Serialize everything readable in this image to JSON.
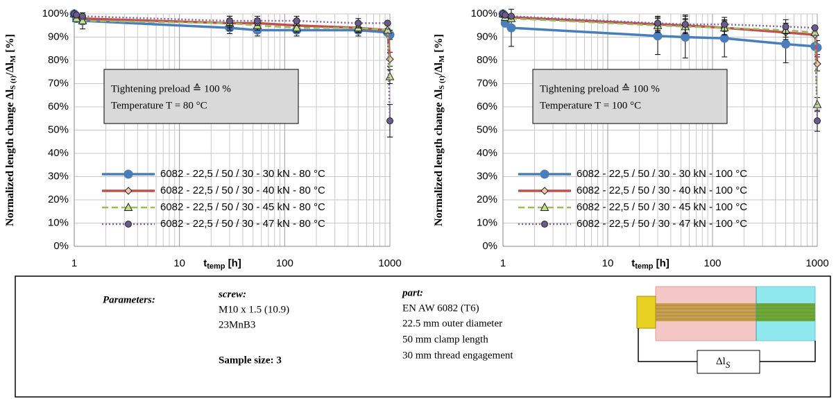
{
  "chart_data": [
    {
      "type": "line",
      "ylabel": [
        "Normalized length change Δl",
        "S (t)",
        "/Δl",
        "M",
        " [%]"
      ],
      "xlabel": [
        "t",
        "temp",
        " [h]"
      ],
      "annotation": [
        "Tightening preload ≙ 100 %",
        "Temperature T = 80 °C"
      ],
      "x": [
        1,
        1.05,
        1.2,
        30,
        55,
        130,
        500,
        950,
        1000
      ],
      "xlim": [
        1,
        1000
      ],
      "xticks": [
        1,
        10,
        100,
        1000
      ],
      "xscale": "log",
      "xminor": [
        2,
        3,
        4,
        5,
        6,
        7,
        8,
        9,
        20,
        30,
        40,
        50,
        60,
        70,
        80,
        90,
        200,
        300,
        400,
        500,
        600,
        700,
        800,
        900
      ],
      "ylim": [
        0,
        100
      ],
      "yticks": [
        {
          "value": 0,
          "label": "0%"
        },
        {
          "value": 10,
          "label": "10%"
        },
        {
          "value": 20,
          "label": "20%"
        },
        {
          "value": 30,
          "label": "30%"
        },
        {
          "value": 40,
          "label": "40%"
        },
        {
          "value": 50,
          "label": "50%"
        },
        {
          "value": 60,
          "label": "60%"
        },
        {
          "value": 70,
          "label": "70%"
        },
        {
          "value": 80,
          "label": "80%"
        },
        {
          "value": 90,
          "label": "90%"
        },
        {
          "value": 100,
          "label": "100%"
        }
      ],
      "grid": true,
      "legend": "lower right",
      "series": [
        {
          "name": "6082 - 22,5 / 50 / 30 - 30 kN - 80 °C",
          "color": "#4a7ebb",
          "marker_fill": "#4a7ebb",
          "line_style": "solid",
          "marker": "circle",
          "values": [
            100,
            98,
            97,
            94,
            93,
            93,
            93,
            92,
            91
          ],
          "errors": [
            null,
            null,
            3.5,
            2.5,
            2.5,
            2.5,
            2.5,
            null,
            2
          ]
        },
        {
          "name": "6082 - 22,5 / 50 / 30 - 40 kN - 80 °C",
          "color": "#c0504d",
          "marker_fill": "#f6c9a9",
          "line_style": "solid",
          "marker": "diamond",
          "values": [
            100,
            99,
            98,
            96,
            96,
            95,
            94,
            93,
            80.5
          ],
          "errors": [
            null,
            null,
            null,
            3,
            2,
            2,
            2,
            null,
            3
          ]
        },
        {
          "name": "6082 - 22,5 / 50 / 30 - 45 kN - 80 °C",
          "color": "#9bbb59",
          "marker_fill": "#c4dd8e",
          "line_style": "dashed",
          "marker": "triangle",
          "values": [
            100,
            98,
            97,
            96,
            95,
            94,
            94,
            93,
            73
          ],
          "errors": [
            null,
            null,
            null,
            2,
            2,
            2,
            2,
            null,
            3
          ]
        },
        {
          "name": "6082 - 22,5 / 50 / 30 - 47 kN - 80 °C",
          "color": "#8064a2",
          "marker_fill": "#6b5a8e",
          "line_style": "dotted",
          "marker": "circle",
          "values": [
            100,
            99.5,
            99,
            97,
            97,
            97,
            96,
            96,
            54
          ],
          "errors": [
            null,
            null,
            null,
            2,
            2,
            2,
            2,
            null,
            7
          ]
        }
      ]
    },
    {
      "type": "line",
      "ylabel": [
        "Normalized length change Δl",
        "S (t)",
        "/Δl",
        "M",
        " [%]"
      ],
      "xlabel": [
        "t",
        "temp",
        " [h]"
      ],
      "annotation": [
        "Tightening preload ≙ 100 %",
        "Temperature T = 100 °C"
      ],
      "x": [
        1,
        1.05,
        1.2,
        30,
        55,
        130,
        500,
        950,
        1000
      ],
      "xlim": [
        1,
        1000
      ],
      "xticks": [
        1,
        10,
        100,
        1000
      ],
      "xscale": "log",
      "xminor": [
        2,
        3,
        4,
        5,
        6,
        7,
        8,
        9,
        20,
        30,
        40,
        50,
        60,
        70,
        80,
        90,
        200,
        300,
        400,
        500,
        600,
        700,
        800,
        900
      ],
      "ylim": [
        0,
        100
      ],
      "yticks": [
        {
          "value": 0,
          "label": "0%"
        },
        {
          "value": 10,
          "label": "10%"
        },
        {
          "value": 20,
          "label": "20%"
        },
        {
          "value": 30,
          "label": "30%"
        },
        {
          "value": 40,
          "label": "40%"
        },
        {
          "value": 50,
          "label": "50%"
        },
        {
          "value": 60,
          "label": "60%"
        },
        {
          "value": 70,
          "label": "70%"
        },
        {
          "value": 80,
          "label": "80%"
        },
        {
          "value": 90,
          "label": "90%"
        },
        {
          "value": 100,
          "label": "100%"
        }
      ],
      "grid": true,
      "legend": "lower left",
      "series": [
        {
          "name": "6082 - 22,5 / 50 / 30 - 30 kN - 100 °C",
          "color": "#4a7ebb",
          "marker_fill": "#4a7ebb",
          "line_style": "solid",
          "marker": "circle",
          "values": [
            100,
            96,
            94,
            90.5,
            90,
            89.5,
            87,
            86,
            85.5
          ],
          "errors": [
            null,
            null,
            8,
            8,
            9,
            8,
            8,
            null,
            3
          ]
        },
        {
          "name": "6082 - 22,5 / 50 / 30 - 40 kN - 100 °C",
          "color": "#c0504d",
          "marker_fill": "#f6c9a9",
          "line_style": "solid",
          "marker": "diamond",
          "values": [
            100,
            99,
            98.5,
            95.5,
            95,
            94,
            92,
            91,
            78.5
          ],
          "errors": [
            null,
            null,
            null,
            3,
            3,
            3,
            3,
            null,
            3
          ]
        },
        {
          "name": "6082 - 22,5 / 50 / 30 - 45 kN - 100 °C",
          "color": "#9bbb59",
          "marker_fill": "#c4dd8e",
          "line_style": "dashed",
          "marker": "triangle",
          "values": [
            100,
            98.5,
            98,
            95,
            94.5,
            94,
            93,
            92,
            61
          ],
          "errors": [
            null,
            null,
            null,
            3,
            3,
            3,
            3,
            null,
            3
          ]
        },
        {
          "name": "6082 - 22,5 / 50 / 30 - 47 kN - 100 °C",
          "color": "#8064a2",
          "marker_fill": "#6b5a8e",
          "line_style": "dotted",
          "marker": "circle",
          "values": [
            100,
            99.5,
            99,
            96,
            95.5,
            95.5,
            94.5,
            94,
            54
          ],
          "errors": [
            null,
            null,
            null,
            3,
            4,
            3,
            3,
            null,
            4.5
          ]
        }
      ]
    }
  ],
  "parameters": {
    "label": "Parameters:",
    "screw": {
      "title": "screw:",
      "lines": [
        "M10 x 1.5 (10.9)",
        "23MnB3"
      ]
    },
    "sample_size": "Sample size: 3",
    "part": {
      "title": "part:",
      "lines": [
        "EN AW 6082 (T6)",
        "22.5 mm outer diameter",
        "50 mm clamp length",
        "30 mm thread engagement"
      ]
    },
    "diagram_label": [
      "Δl",
      "S"
    ]
  }
}
